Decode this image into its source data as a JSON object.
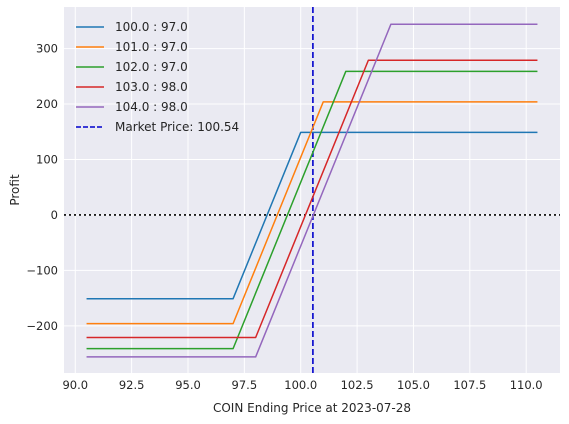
{
  "chart_data": {
    "type": "line",
    "xlabel": "COIN Ending Price at 2023-07-28",
    "ylabel": "Profit",
    "xlim": [
      89.5,
      111.5
    ],
    "ylim": [
      -285,
      375
    ],
    "xticks": [
      90.0,
      92.5,
      95.0,
      97.5,
      100.0,
      102.5,
      105.0,
      107.5,
      110.0
    ],
    "xtick_labels": [
      "90.0",
      "92.5",
      "95.0",
      "97.5",
      "100.0",
      "102.5",
      "105.0",
      "107.5",
      "110.0"
    ],
    "yticks": [
      -200,
      -100,
      0,
      100,
      200,
      300
    ],
    "ytick_labels": [
      "−200",
      "−100",
      "0",
      "100",
      "200",
      "300"
    ],
    "grid": true,
    "legend_position": "top-left",
    "background": "#eaeaf2",
    "series": [
      {
        "name": "100.0 : 97.0",
        "color": "#1f77b4",
        "x": [
          90.5,
          97.0,
          100.0,
          110.5
        ],
        "y": [
          -151,
          -151,
          149,
          149
        ]
      },
      {
        "name": "101.0 : 97.0",
        "color": "#ff7f0e",
        "x": [
          90.5,
          97.0,
          101.0,
          110.5
        ],
        "y": [
          -196,
          -196,
          204,
          204
        ]
      },
      {
        "name": "102.0 : 97.0",
        "color": "#2ca02c",
        "x": [
          90.5,
          97.0,
          102.0,
          110.5
        ],
        "y": [
          -241,
          -241,
          259,
          259
        ]
      },
      {
        "name": "103.0 : 98.0",
        "color": "#d62728",
        "x": [
          90.5,
          98.0,
          103.0,
          110.5
        ],
        "y": [
          -221,
          -221,
          279,
          279
        ]
      },
      {
        "name": "104.0 : 98.0",
        "color": "#9467bd",
        "x": [
          90.5,
          98.0,
          104.0,
          110.5
        ],
        "y": [
          -256,
          -256,
          344,
          344
        ]
      }
    ],
    "reference_lines": [
      {
        "name": "Market Price: 100.54",
        "orientation": "vertical",
        "value": 100.54,
        "color": "#0000cc",
        "style": "dashed"
      },
      {
        "orientation": "horizontal",
        "value": 0,
        "color": "#000000",
        "style": "dotted"
      }
    ]
  }
}
